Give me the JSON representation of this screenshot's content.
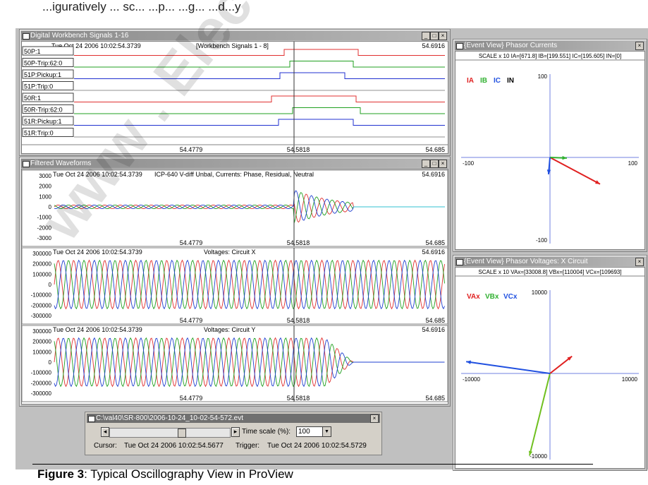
{
  "top_text": "...iguratively ... sc... ...p... ...g... ...d...y",
  "caption": {
    "prefix": "Figure 3",
    "text": ": Typical Oscillography View in ProView"
  },
  "workbench": {
    "title": "Digital Workbench Signals 1-16",
    "timestamp": "Tue Oct 24 2006 10:02:54.3739",
    "subtitle": "[Workbench Signals 1 - 8]",
    "right_time": "54.6916",
    "signals": [
      {
        "name": "50P:1",
        "color": "#e03030"
      },
      {
        "name": "50P-Trip:62:0",
        "color": "#20a020"
      },
      {
        "name": "51P:Pickup:1",
        "color": "#2030d0"
      },
      {
        "name": "51P:Trip:0",
        "color": "#909090"
      },
      {
        "name": "50R:1",
        "color": "#e03030"
      },
      {
        "name": "50R-Trip:62:0",
        "color": "#20a020"
      },
      {
        "name": "51R:Pickup:1",
        "color": "#2030d0"
      },
      {
        "name": "51R:Trip:0",
        "color": "#909090"
      }
    ],
    "x_labels": [
      "54.4779",
      "54.5818",
      "54.685"
    ]
  },
  "waveforms": {
    "title": "Filtered Waveforms",
    "panels": [
      {
        "timestamp": "Tue Oct 24 2006 10:02:54.3739",
        "label": "ICP-640 V-diff Unbal, Currents: Phase, Residual, Neutral",
        "right_time": "54.6916",
        "y_ticks": [
          "3000",
          "2000",
          "1000",
          "0",
          "-1000",
          "-2000",
          "-3000"
        ],
        "x_labels": [
          "54.4779",
          "54.5818",
          "54.685"
        ]
      },
      {
        "timestamp": "Tue Oct 24 2006 10:02:54.3739",
        "label": "Voltages: Circuit X",
        "right_time": "54.6916",
        "y_ticks": [
          "300000",
          "200000",
          "100000",
          "0",
          "-100000",
          "-200000",
          "-300000"
        ],
        "x_labels": [
          "54.4779",
          "54.5818",
          "54.685"
        ]
      },
      {
        "timestamp": "Tue Oct 24 2006 10:02:54.3739",
        "label": "Voltages: Circuit Y",
        "right_time": "54.6916",
        "y_ticks": [
          "300000",
          "200000",
          "100000",
          "0",
          "-100000",
          "-200000",
          "-300000"
        ],
        "x_labels": [
          "54.4779",
          "54.5818",
          "54.685"
        ]
      }
    ]
  },
  "phasor_currents": {
    "title": "{Event View} Phasor Currents",
    "scale_line": "SCALE x 10  IA=[671.8]  IB=[199.551]  IC=[195.605]  IN=[0]",
    "legend": [
      {
        "name": "IA",
        "color": "#e02020"
      },
      {
        "name": "IB",
        "color": "#30b030"
      },
      {
        "name": "IC",
        "color": "#2050e0"
      },
      {
        "name": "IN",
        "color": "#000000"
      }
    ],
    "axis_labels": {
      "top": "100",
      "bottom": "-100",
      "left": "-100",
      "right": "100"
    }
  },
  "phasor_voltages": {
    "title": "{Event View} Phasor Voltages: X Circuit",
    "scale_line": "SCALE x 10  VAx=[33008.8]  VBx=[110004]  VCx=[109693]",
    "legend": [
      {
        "name": "VAx",
        "color": "#e02020"
      },
      {
        "name": "VBx",
        "color": "#30b030"
      },
      {
        "name": "VCx",
        "color": "#2050e0"
      }
    ],
    "axis_labels": {
      "top": "10000",
      "bottom": "-10000",
      "left": "-10000",
      "right": "10000"
    }
  },
  "control": {
    "title": "C:\\val40\\SR-800\\2006-10-24_10-02-54-572.evt",
    "time_scale_label": "Time scale (%):",
    "time_scale_value": "100",
    "cursor_label": "Cursor:",
    "cursor_value": "Tue Oct 24 2006 10:02:54.5677",
    "trigger_label": "Trigger:",
    "trigger_value": "Tue Oct 24 2006 10:02:54.5729",
    "slider_position": 0.6
  },
  "watermark": "www . Electric..."
}
